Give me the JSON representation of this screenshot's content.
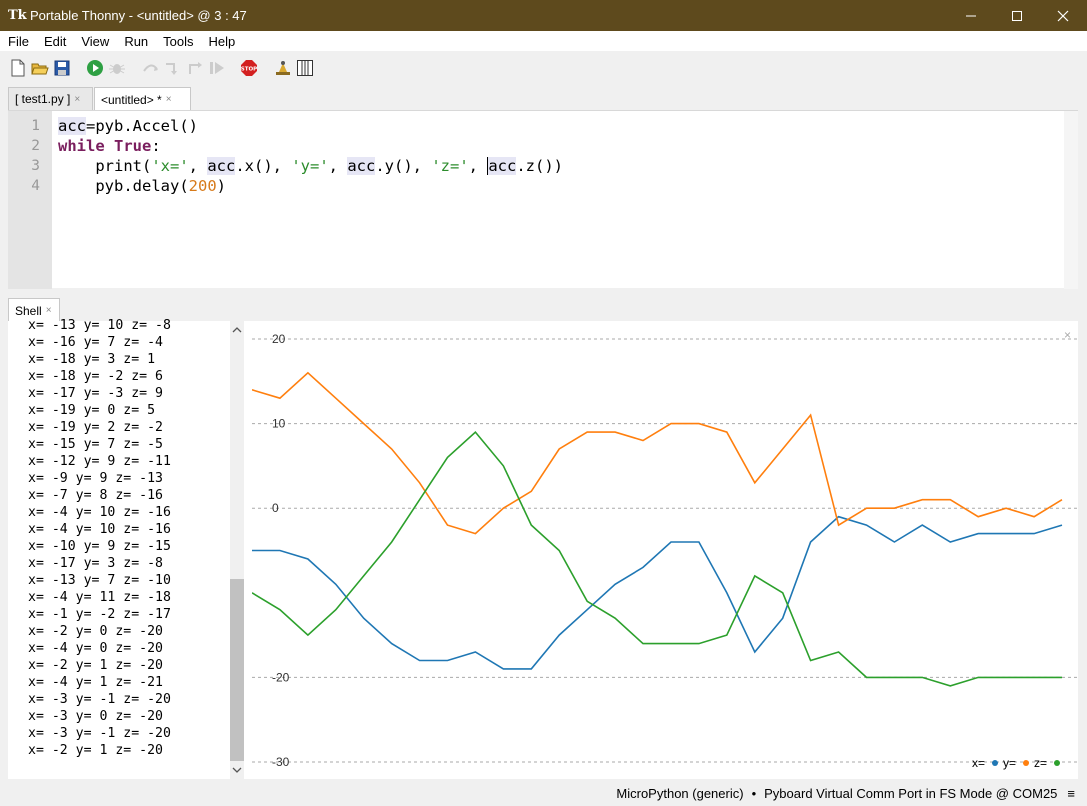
{
  "window": {
    "title": "Portable Thonny  -  <untitled>  @  3 : 47",
    "app_icon": "Tk"
  },
  "menu": [
    "File",
    "Edit",
    "View",
    "Run",
    "Tools",
    "Help"
  ],
  "toolbar_icons": [
    "new-file-icon",
    "open-folder-icon",
    "save-icon",
    "run-icon",
    "debug-icon",
    "step-over-icon",
    "step-into-icon",
    "step-out-icon",
    "resume-icon",
    "stop-icon",
    "zoom-icon",
    "support-icon"
  ],
  "tabs": [
    {
      "label": "[ test1.py ]",
      "close": "×"
    },
    {
      "label": "<untitled>  *",
      "close": "×"
    }
  ],
  "editor": {
    "line_numbers": [
      "1",
      "2",
      "3",
      "4"
    ]
  },
  "shell": {
    "tab_label": "Shell",
    "close": "×",
    "lines": [
      "x= -13 y= 10 z= -8",
      "x= -16 y= 7 z= -4",
      "x= -18 y= 3 z= 1",
      "x= -18 y= -2 z= 6",
      "x= -17 y= -3 z= 9",
      "x= -19 y= 0 z= 5",
      "x= -19 y= 2 z= -2",
      "x= -15 y= 7 z= -5",
      "x= -12 y= 9 z= -11",
      "x= -9 y= 9 z= -13",
      "x= -7 y= 8 z= -16",
      "x= -4 y= 10 z= -16",
      "x= -4 y= 10 z= -16",
      "x= -10 y= 9 z= -15",
      "x= -17 y= 3 z= -8",
      "x= -13 y= 7 z= -10",
      "x= -4 y= 11 z= -18",
      "x= -1 y= -2 z= -17",
      "x= -2 y= 0 z= -20",
      "x= -4 y= 0 z= -20",
      "x= -2 y= 1 z= -20",
      "x= -4 y= 1 z= -21",
      "x= -3 y= -1 z= -20",
      "x= -3 y= 0 z= -20",
      "x= -3 y= -1 z= -20",
      "x= -2 y= 1 z= -20"
    ]
  },
  "plotter_close": "×",
  "chart_data": {
    "type": "line",
    "ylim": [
      -30,
      20
    ],
    "yticks": [
      20,
      10,
      0,
      -20,
      -30
    ],
    "grid": true,
    "legend_placement": "bottom-right",
    "series": [
      {
        "name": "x=",
        "color": "#1f77b4",
        "values": [
          -5,
          -5,
          -6,
          -9,
          -13,
          -16,
          -18,
          -18,
          -17,
          -19,
          -19,
          -15,
          -12,
          -9,
          -7,
          -4,
          -4,
          -10,
          -17,
          -13,
          -4,
          -1,
          -2,
          -4,
          -2,
          -4,
          -3,
          -3,
          -3,
          -2
        ]
      },
      {
        "name": "y=",
        "color": "#ff7f0e",
        "values": [
          14,
          13,
          16,
          13,
          10,
          7,
          3,
          -2,
          -3,
          0,
          2,
          7,
          9,
          9,
          8,
          10,
          10,
          9,
          3,
          7,
          11,
          -2,
          0,
          0,
          1,
          1,
          -1,
          0,
          -1,
          1
        ]
      },
      {
        "name": "z=",
        "color": "#2ca02c",
        "values": [
          -10,
          -12,
          -15,
          -12,
          -8,
          -4,
          1,
          6,
          9,
          5,
          -2,
          -5,
          -11,
          -13,
          -16,
          -16,
          -16,
          -15,
          -8,
          -10,
          -18,
          -17,
          -20,
          -20,
          -20,
          -21,
          -20,
          -20,
          -20,
          -20
        ]
      }
    ]
  },
  "status": {
    "interpreter": "MicroPython (generic)",
    "separator": "•",
    "port": "Pyboard Virtual Comm Port in FS Mode @ COM25",
    "menu": "≡"
  }
}
